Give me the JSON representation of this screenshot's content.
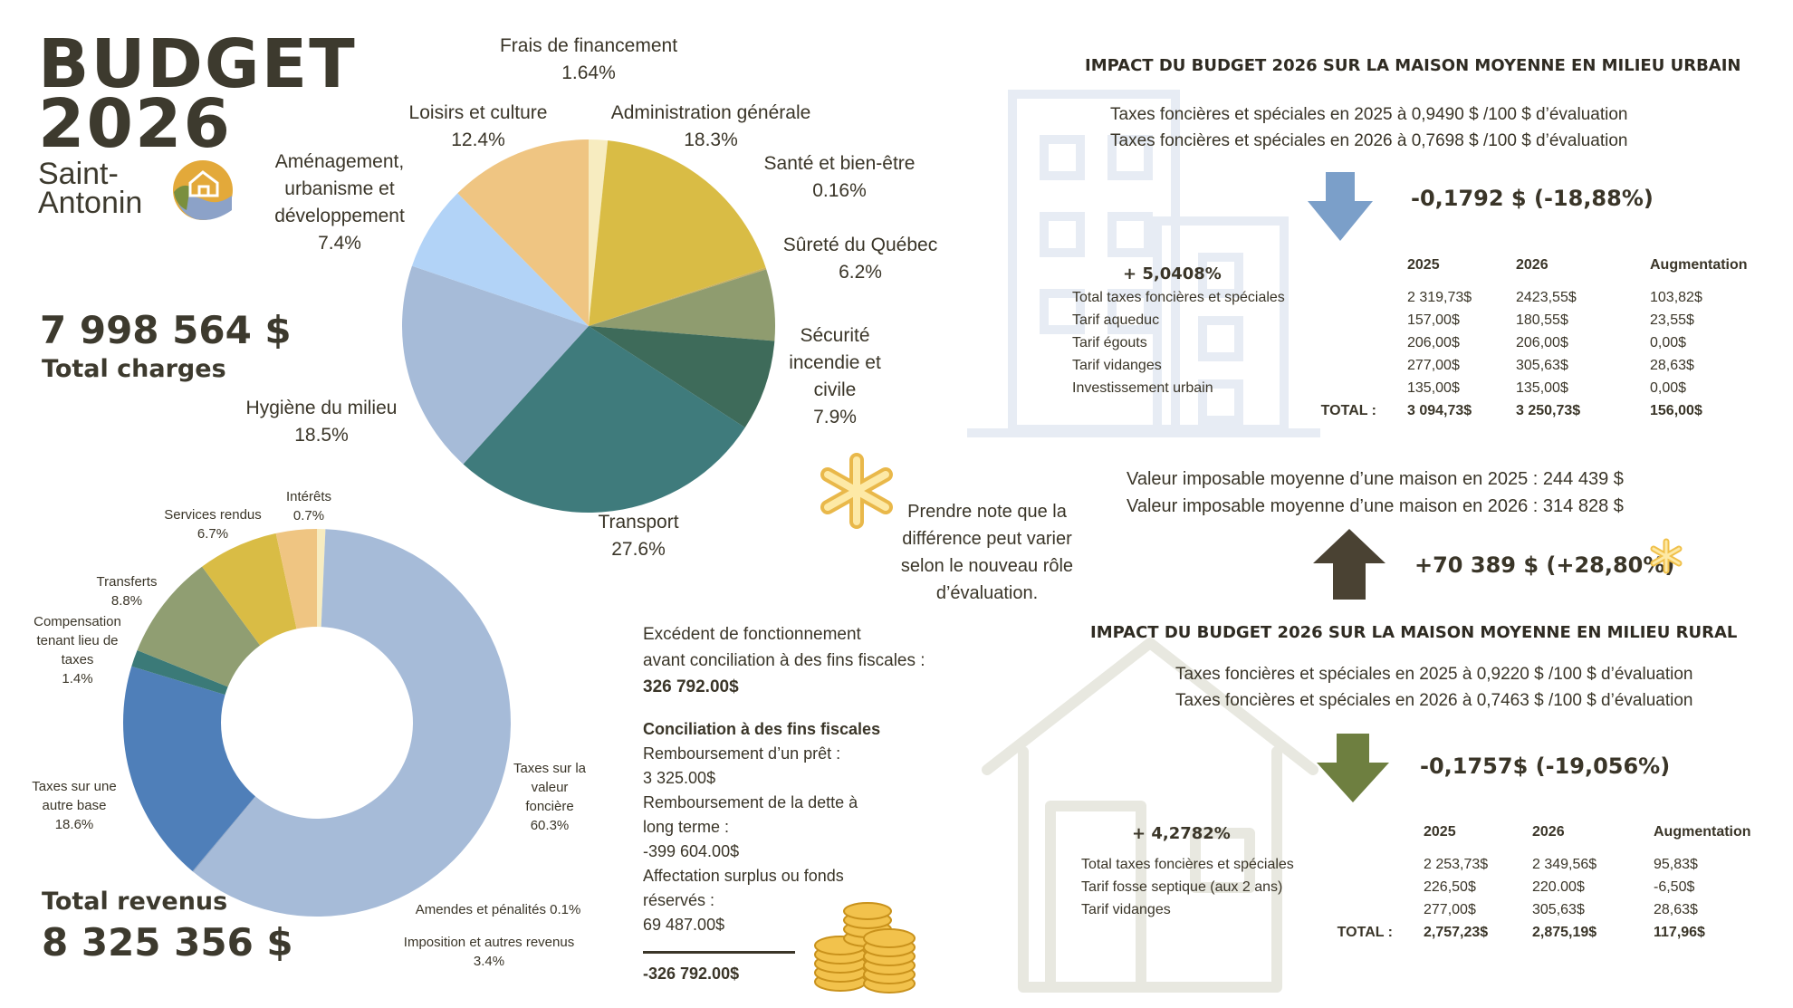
{
  "header": {
    "title_line1": "BUDGET",
    "title_line2": "2026",
    "logo_line1": "Saint-",
    "logo_line2": "Antonin"
  },
  "charges": {
    "amount": "7 998 564 $",
    "label": "Total charges"
  },
  "revenus": {
    "label": "Total revenus",
    "amount": "8 325 356 $"
  },
  "chart_data": [
    {
      "type": "pie",
      "title": "Charges",
      "slices": [
        {
          "label": "Frais de financement",
          "value": 1.64,
          "display": "1.64%",
          "color": "#f7ecc0"
        },
        {
          "label": "Administration générale",
          "value": 18.3,
          "display": "18.3%",
          "color": "#d9bc45"
        },
        {
          "label": "Santé et bien-être",
          "value": 0.16,
          "display": "0.16%",
          "color": "#c8b060"
        },
        {
          "label": "Sûreté du Québec",
          "value": 6.2,
          "display": "6.2%",
          "color": "#8f9c6f"
        },
        {
          "label": "Sécurité incendie et civile",
          "value": 7.9,
          "display": "7.9%",
          "color": "#3e6b5a"
        },
        {
          "label": "Transport",
          "value": 27.6,
          "display": "27.6%",
          "color": "#3f7b7c"
        },
        {
          "label": "Hygiène du milieu",
          "value": 18.5,
          "display": "18.5%",
          "color": "#a6bbd8"
        },
        {
          "label": "Aménagement, urbanisme et développement",
          "value": 7.4,
          "display": "7.4%",
          "color": "#b2d3f7"
        },
        {
          "label": "Loisirs et culture",
          "value": 12.4,
          "display": "12.4%",
          "color": "#efc582"
        }
      ]
    },
    {
      "type": "pie",
      "title": "Revenus",
      "slices": [
        {
          "label": "Intérêts",
          "value": 0.7,
          "display": "0.7%",
          "color": "#f7ecc0"
        },
        {
          "label": "Taxes sur la valeur foncière",
          "value": 60.3,
          "display": "60.3%",
          "color": "#a6bbd8"
        },
        {
          "label": "Amendes et pénalités",
          "value": 0.1,
          "display": "0.1%",
          "color": "#8fa7c7"
        },
        {
          "label": "Taxes sur une autre base",
          "value": 18.6,
          "display": "18.6%",
          "color": "#4f7fb9"
        },
        {
          "label": "Compensation tenant lieu de taxes",
          "value": 1.4,
          "display": "1.4%",
          "color": "#3b7a78"
        },
        {
          "label": "Transferts",
          "value": 8.8,
          "display": "8.8%",
          "color": "#909e72"
        },
        {
          "label": "Services rendus",
          "value": 6.7,
          "display": "6.7%",
          "color": "#d9bc45"
        },
        {
          "label": "Imposition et autres revenus",
          "value": 3.4,
          "display": "3.4%",
          "color": "#efc582"
        }
      ]
    }
  ],
  "pie_labels": {
    "frais": {
      "l1": "Frais de financement",
      "v": "1.64%"
    },
    "admin": {
      "l1": "Administration générale",
      "v": "18.3%"
    },
    "sante": {
      "l1": "Santé et bien-être",
      "v": "0.16%"
    },
    "surete": {
      "l1": "Sûreté du Québec",
      "v": "6.2%"
    },
    "securite": {
      "l1": "Sécurité",
      "l2": "incendie et",
      "l3": "civile",
      "v": "7.9%"
    },
    "transport": {
      "l1": "Transport",
      "v": "27.6%"
    },
    "hygiene": {
      "l1": "Hygiène du milieu",
      "v": "18.5%"
    },
    "amenag": {
      "l1": "Aménagement,",
      "l2": "urbanisme et",
      "l3": "développement",
      "v": "7.4%"
    },
    "loisirs": {
      "l1": "Loisirs et culture",
      "v": "12.4%"
    }
  },
  "donut_labels": {
    "interets": {
      "l1": "Intérêts",
      "v": "0.7%"
    },
    "services": {
      "l1": "Services rendus",
      "v": "6.7%"
    },
    "transferts": {
      "l1": "Transferts",
      "v": "8.8%"
    },
    "compensation": {
      "l1": "Compensation",
      "l2": "tenant lieu de",
      "l3": "taxes",
      "v": "1.4%"
    },
    "autrebase": {
      "l1": "Taxes sur une",
      "l2": "autre base",
      "v": "18.6%"
    },
    "fonciere": {
      "l1": "Taxes sur la",
      "l2": "valeur",
      "l3": "foncière",
      "v": "60.3%"
    },
    "amendes": {
      "l1": "Amendes et pénalités 0.1%"
    },
    "imposition": {
      "l1": "Imposition et autres revenus",
      "v": "3.4%"
    }
  },
  "urbain": {
    "heading": "IMPACT DU BUDGET 2026 SUR LA MAISON MOYENNE EN MILIEU URBAIN",
    "rate_2025": "Taxes foncières et spéciales en 2025 à 0,9490 $ /100 $ d’évaluation",
    "rate_2026": "Taxes foncières et spéciales en 2026 à 0,7698 $ /100 $ d’évaluation",
    "delta": "-0,1792 $  (-18,88%)",
    "increase": "+ 5,0408%",
    "cols": [
      "2025",
      "2026",
      "Augmentation"
    ],
    "rows": [
      {
        "label": "Total taxes foncières et spéciales",
        "y2025": "2 319,73$",
        "y2026": "2423,55$",
        "aug": "103,82$"
      },
      {
        "label": "Tarif aqueduc",
        "y2025": "157,00$",
        "y2026": "180,55$",
        "aug": "23,55$"
      },
      {
        "label": "Tarif égouts",
        "y2025": "206,00$",
        "y2026": "206,00$",
        "aug": "0,00$"
      },
      {
        "label": "Tarif vidanges",
        "y2025": "277,00$",
        "y2026": "305,63$",
        "aug": "28,63$"
      },
      {
        "label": "Investissement urbain",
        "y2025": "135,00$",
        "y2026": "135,00$",
        "aug": "0,00$"
      }
    ],
    "total": {
      "label": "TOTAL  :",
      "y2025": "3 094,73$",
      "y2026": "3 250,73$",
      "aug": "156,00$"
    }
  },
  "valeur": {
    "line1": "Valeur imposable moyenne d’une maison en 2025 : 244 439 $",
    "line2": "Valeur imposable moyenne d’une maison en 2026  : 314 828 $",
    "delta": "+70 389 $  (+28,80%)"
  },
  "note": {
    "l1": "Prendre note que la",
    "l2": "différence peut varier",
    "l3": "selon le nouveau rôle",
    "l4": "d’évaluation."
  },
  "rural": {
    "heading": "IMPACT DU BUDGET 2026 SUR LA MAISON MOYENNE EN MILIEU RURAL",
    "rate_2025": "Taxes foncières et spéciales en 2025 à 0,9220 $ /100 $ d’évaluation",
    "rate_2026": "Taxes foncières et spéciales en 2026 à 0,7463 $ /100 $ d’évaluation",
    "delta": "-0,1757$  (-19,056%)",
    "increase": "+ 4,2782%",
    "cols": [
      "2025",
      "2026",
      "Augmentation"
    ],
    "rows": [
      {
        "label": "Total taxes foncières et spéciales",
        "y2025": "2 253,73$",
        "y2026": "2 349,56$",
        "aug": "95,83$"
      },
      {
        "label": "Tarif fosse septique (aux 2 ans)",
        "y2025": "226,50$",
        "y2026": "220.00$",
        "aug": "-6,50$"
      },
      {
        "label": "Tarif vidanges",
        "y2025": "277,00$",
        "y2026": "305,63$",
        "aug": "28,63$"
      }
    ],
    "total": {
      "label": "TOTAL  :",
      "y2025": "2,757,23$",
      "y2026": "2,875,19$",
      "aug": "117,96$"
    }
  },
  "excedent": {
    "l1": "Excédent de fonctionnement",
    "l2": "avant conciliation à des fins fiscales :",
    "amount": "326 792.00$",
    "conc_title": "Conciliation à des fins fiscales",
    "items": [
      "Remboursement d’un prêt :",
      "3 325.00$",
      "Remboursement de la dette à",
      "long terme :",
      "-399 604.00$",
      "Affectation surplus ou fonds",
      "réservés :",
      "69 487.00$"
    ],
    "final": "-326 792.00$"
  }
}
